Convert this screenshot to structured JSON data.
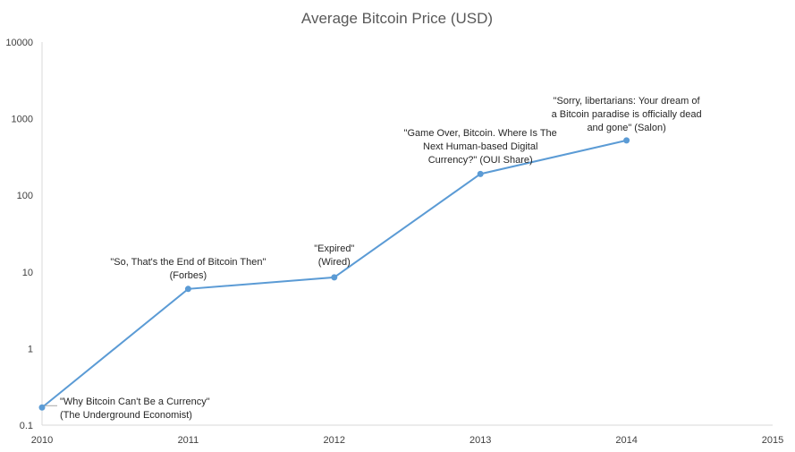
{
  "chart_data": {
    "type": "line",
    "title": "Average Bitcoin Price (USD)",
    "xlabel": "",
    "ylabel": "",
    "y_scale": "log",
    "xlim": [
      2010,
      2015
    ],
    "ylim": [
      0.1,
      10000
    ],
    "grid": false,
    "legend": "none",
    "x_ticks": [
      "2010",
      "2011",
      "2012",
      "2013",
      "2014",
      "2015"
    ],
    "y_ticks": [
      "0.1",
      "1",
      "10",
      "100",
      "1000",
      "10000"
    ],
    "series": [
      {
        "color": "#5b9bd5",
        "x": [
          2010,
          2011,
          2012,
          2013,
          2014
        ],
        "values": [
          0.17,
          6,
          8.5,
          190,
          520
        ]
      }
    ],
    "annotations": [
      {
        "x": 2010,
        "lines": [
          "\"Why Bitcoin Can't Be a Currency\"",
          "(The Underground Economist)"
        ]
      },
      {
        "x": 2011,
        "lines": [
          "\"So, That's the End of Bitcoin Then\"",
          "(Forbes)"
        ]
      },
      {
        "x": 2012,
        "lines": [
          "\"Expired\"",
          "(Wired)"
        ]
      },
      {
        "x": 2013,
        "lines": [
          "\"Game Over, Bitcoin. Where Is The",
          "Next Human-based Digital",
          "Currency?\" (OUI Share)"
        ]
      },
      {
        "x": 2014,
        "lines": [
          "\"Sorry, libertarians: Your dream of",
          "a Bitcoin paradise is officially dead",
          "and gone\" (Salon)"
        ]
      }
    ]
  }
}
